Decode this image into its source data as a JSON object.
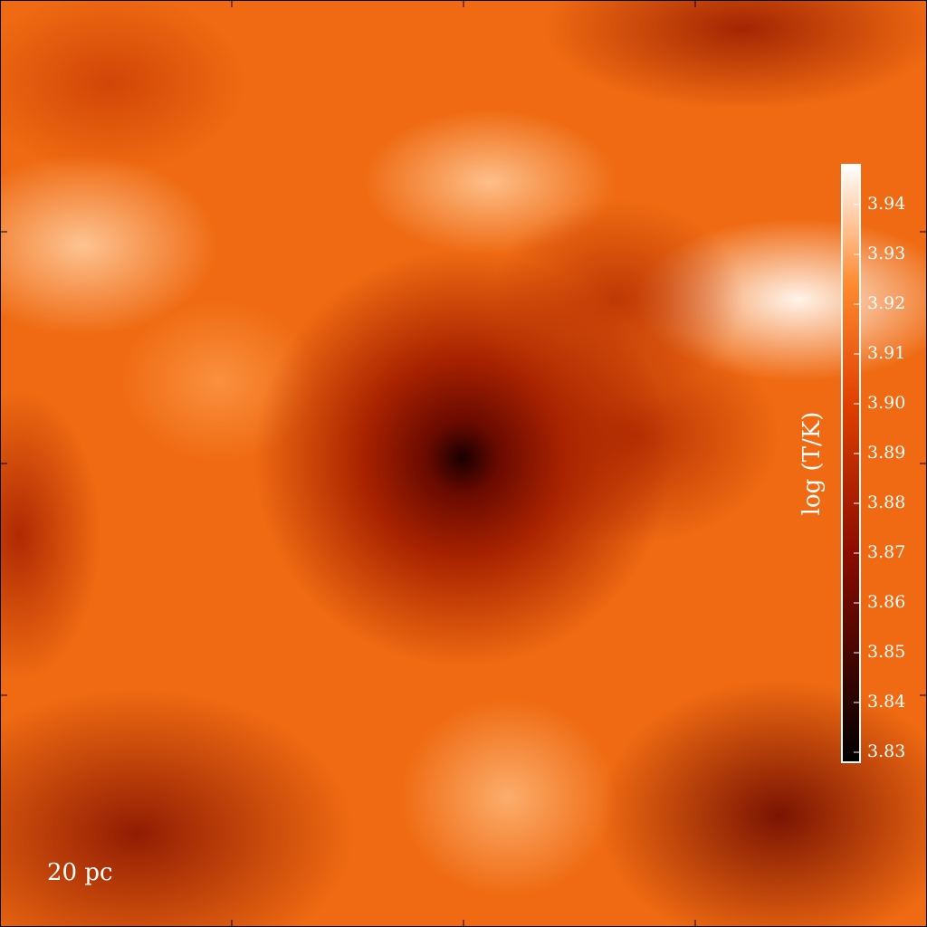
{
  "chart_data": {
    "type": "heatmap",
    "colorbar_label": "log (T/K)",
    "clim": [
      3.828,
      3.948
    ],
    "cticks": [
      3.83,
      3.84,
      3.85,
      3.86,
      3.87,
      3.88,
      3.89,
      {
        "value": 3.9,
        "label": "3.90"
      },
      3.91,
      3.92,
      3.93,
      3.94
    ],
    "scale_bar_label": "20 pc"
  }
}
